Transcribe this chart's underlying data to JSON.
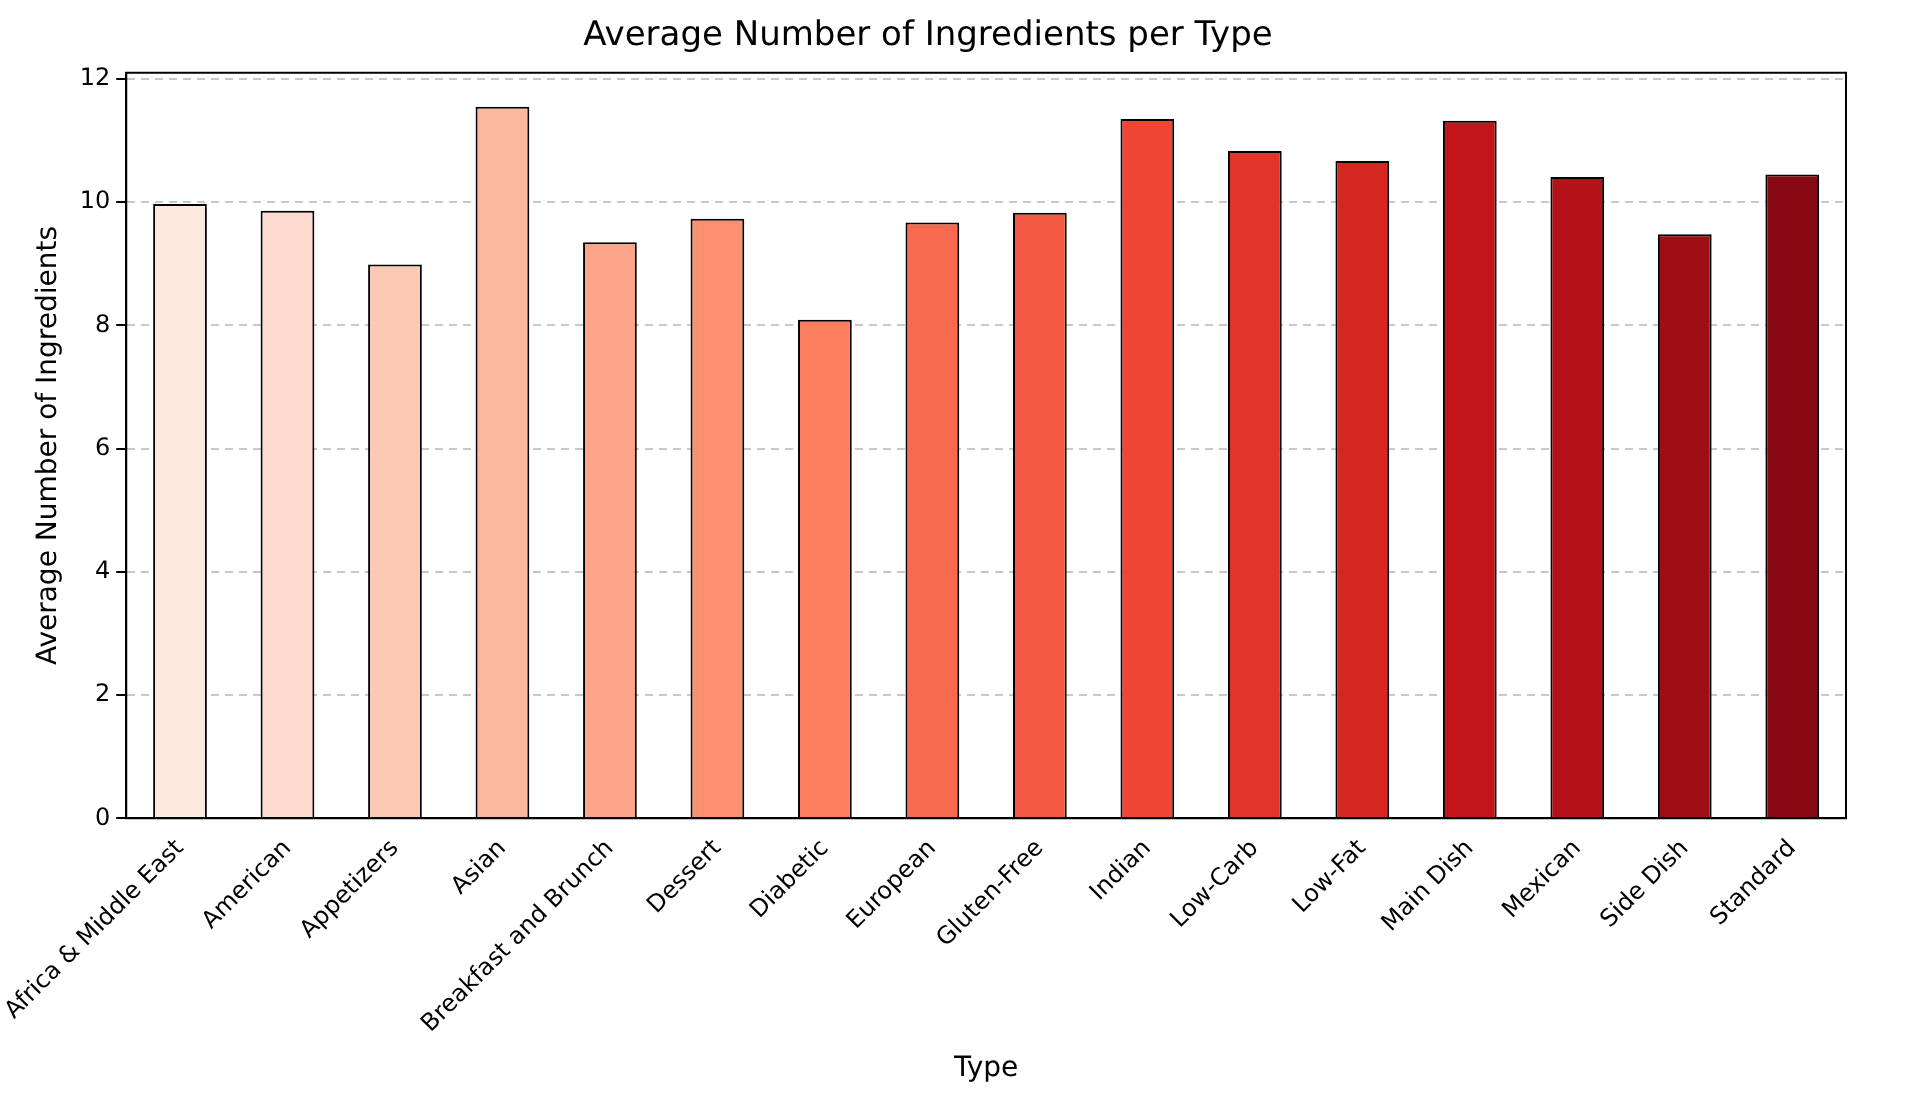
{
  "chart_data": {
    "type": "bar",
    "title": "Average Number of Ingredients per Type",
    "xlabel": "Type",
    "ylabel": "Average Number of Ingredients",
    "categories": [
      "Africa & Middle East",
      "American",
      "Appetizers",
      "Asian",
      "Breakfast and Brunch",
      "Dessert",
      "Diabetic",
      "European",
      "Gluten-Free",
      "Indian",
      "Low-Carb",
      "Low-Fat",
      "Main Dish",
      "Mexican",
      "Side Dish",
      "Standard"
    ],
    "values": [
      9.97,
      9.86,
      8.99,
      11.55,
      9.35,
      9.73,
      8.09,
      9.67,
      9.83,
      11.35,
      10.83,
      10.67,
      11.32,
      10.41,
      9.48,
      10.45
    ],
    "colors": [
      "#fee9df",
      "#fddccf",
      "#fccab4",
      "#fcb89e",
      "#fca487",
      "#fc9070",
      "#fb7e5e",
      "#f86a4f",
      "#f45a43",
      "#ee4534",
      "#e1342a",
      "#d52620",
      "#c3161b",
      "#b21218",
      "#9f0e15",
      "#850812"
    ],
    "ylim": [
      0,
      12.1
    ],
    "yticks": [
      0,
      2,
      4,
      6,
      8,
      10,
      12
    ],
    "grid": "y"
  }
}
